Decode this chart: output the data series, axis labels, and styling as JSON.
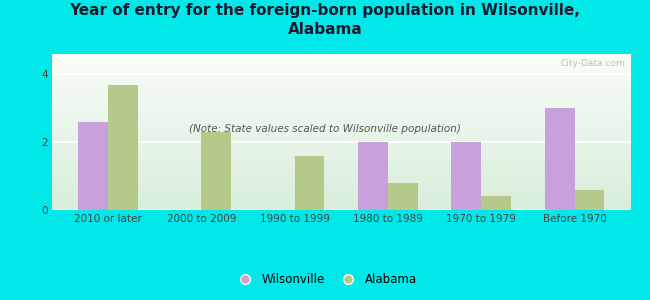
{
  "title": "Year of entry for the foreign-born population in Wilsonville,\nAlabama",
  "subtitle": "(Note: State values scaled to Wilsonville population)",
  "categories": [
    "2010 or later",
    "2000 to 2009",
    "1990 to 1999",
    "1980 to 1989",
    "1970 to 1979",
    "Before 1970"
  ],
  "wilsonville_values": [
    2.6,
    0,
    0,
    2.0,
    2.0,
    3.0
  ],
  "alabama_values": [
    3.7,
    2.3,
    1.6,
    0.8,
    0.4,
    0.6
  ],
  "wilsonville_color": "#c9a0dc",
  "alabama_color": "#b5c98a",
  "background_color": "#00e8e8",
  "ylim": [
    0,
    4.6
  ],
  "yticks": [
    0,
    2,
    4
  ],
  "legend_wilsonville": "Wilsonville",
  "legend_alabama": "Alabama",
  "bar_width": 0.32,
  "title_fontsize": 11,
  "subtitle_fontsize": 7.5,
  "tick_fontsize": 7.5,
  "legend_fontsize": 8.5,
  "watermark_text": "City-Data.com"
}
